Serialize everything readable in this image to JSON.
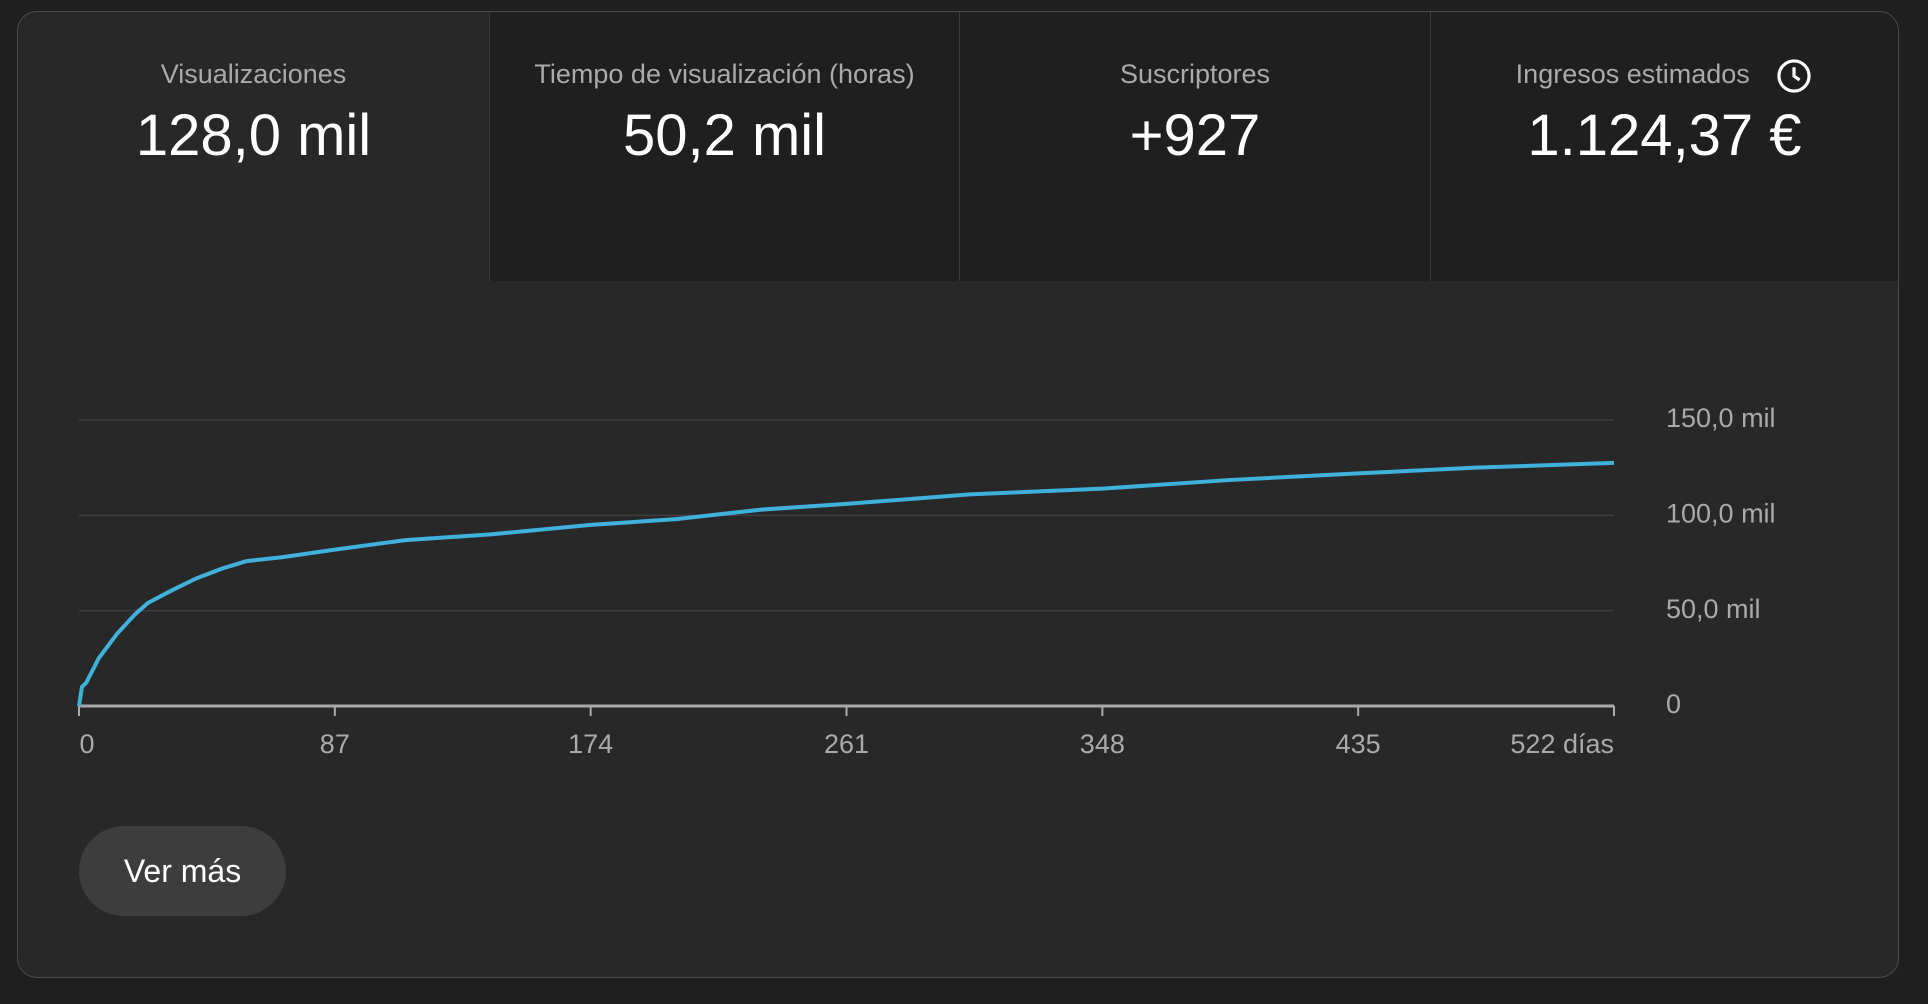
{
  "tabs": [
    {
      "label": "Visualizaciones",
      "value": "128,0 mil"
    },
    {
      "label": "Tiempo de visualización (horas)",
      "value": "50,2 mil"
    },
    {
      "label": "Suscriptores",
      "value": "+927"
    },
    {
      "label": "Ingresos estimados",
      "value": "1.124,37 €"
    }
  ],
  "chart_data": {
    "type": "line",
    "x": [
      0,
      1,
      2.5,
      6.7,
      13,
      19,
      23.4,
      32,
      40,
      48.5,
      57,
      69,
      87,
      111,
      140,
      174,
      203,
      232,
      261,
      303,
      348,
      391,
      435,
      475,
      522
    ],
    "series": [
      {
        "color": "#3fb1da",
        "values": [
          0,
          10000,
          12300,
          25000,
          38000,
          48000,
          54000,
          61000,
          67000,
          72000,
          76000,
          78000,
          82000,
          87000,
          90000,
          95000,
          98000,
          103000,
          106000,
          111000,
          114000,
          118500,
          122000,
          125000,
          127500
        ]
      }
    ],
    "xlim": [
      0,
      522
    ],
    "xticks": [
      0,
      87,
      174,
      261,
      348,
      435,
      {
        "value": 522,
        "label": "522 días"
      }
    ],
    "ylim": [
      0,
      150000
    ],
    "yticks": [
      0,
      {
        "value": 50000,
        "label": "50,0 mil"
      },
      {
        "value": 100000,
        "label": "100,0 mil"
      },
      {
        "value": 150000,
        "label": "150,0 mil"
      }
    ],
    "grid": true
  },
  "button": "Ver más"
}
